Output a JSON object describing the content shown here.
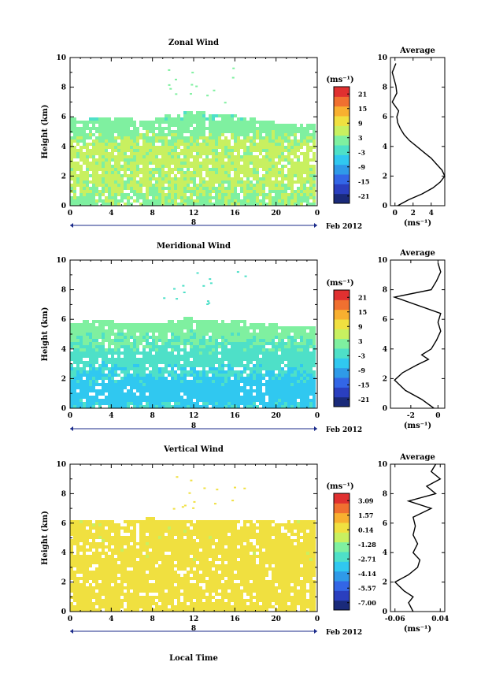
{
  "chart_data": [
    {
      "type": "heatmap",
      "title": "Zonal Wind",
      "xlabel": "",
      "ylabel": "Height (km)",
      "xticks": [
        "0",
        "4",
        "8",
        "12",
        "16",
        "20",
        "0"
      ],
      "yticks": [
        "0",
        "2",
        "4",
        "6",
        "8",
        "10"
      ],
      "xlim": [
        0,
        24
      ],
      "ylim": [
        0,
        10
      ],
      "date_marker": "8",
      "date_label": "Feb 2012",
      "colorbar": {
        "unit": "(ms⁻¹)",
        "ticks": [
          "21",
          "15",
          "9",
          "3",
          "-3",
          "-9",
          "-15",
          "-21"
        ],
        "range": [
          -24,
          24
        ]
      },
      "field": {
        "data_top_km": [
          6.0,
          6.0,
          6.0,
          6.0,
          6.1,
          6.0,
          5.9,
          5.8,
          6.0,
          6.2,
          6.3,
          6.4,
          6.4,
          6.3,
          6.3,
          6.2,
          6.0,
          6.0,
          5.9,
          5.8,
          5.6,
          5.6,
          5.6,
          5.6
        ],
        "value_by_height": [
          [
            0,
            3
          ],
          [
            1,
            4
          ],
          [
            2,
            5
          ],
          [
            3,
            5
          ],
          [
            4,
            5
          ],
          [
            5,
            3
          ],
          [
            6,
            1
          ],
          [
            8,
            0
          ],
          [
            10,
            1
          ]
        ]
      },
      "average_profile": {
        "title": "Average",
        "xlabel": "(ms⁻¹)",
        "xticks": [
          "0",
          "2",
          "4"
        ],
        "xlim": [
          -0.5,
          5.5
        ],
        "ylim": [
          0,
          10
        ],
        "yticks": [
          "0",
          "2",
          "4",
          "6",
          "8",
          "10"
        ],
        "points": [
          [
            0.3,
            0
          ],
          [
            1.5,
            0.4
          ],
          [
            3.0,
            0.8
          ],
          [
            4.2,
            1.2
          ],
          [
            5.0,
            1.6
          ],
          [
            5.5,
            2.0
          ],
          [
            5.2,
            2.4
          ],
          [
            4.6,
            2.8
          ],
          [
            4.0,
            3.2
          ],
          [
            3.2,
            3.6
          ],
          [
            2.4,
            4.0
          ],
          [
            1.6,
            4.4
          ],
          [
            1.0,
            4.8
          ],
          [
            0.6,
            5.2
          ],
          [
            0.3,
            5.6
          ],
          [
            0.2,
            6.0
          ],
          [
            0.4,
            6.4
          ],
          [
            -0.3,
            7.0
          ],
          [
            0.2,
            7.6
          ],
          [
            0.1,
            8.1
          ],
          [
            -0.3,
            9.0
          ],
          [
            0.1,
            9.6
          ]
        ]
      }
    },
    {
      "type": "heatmap",
      "title": "Meridional Wind",
      "xlabel": "",
      "ylabel": "Height (km)",
      "xticks": [
        "0",
        "4",
        "8",
        "12",
        "16",
        "20",
        "0"
      ],
      "yticks": [
        "0",
        "2",
        "4",
        "6",
        "8",
        "10"
      ],
      "xlim": [
        0,
        24
      ],
      "ylim": [
        0,
        10
      ],
      "date_marker": "8",
      "date_label": "Feb 2012",
      "colorbar": {
        "unit": "(ms⁻¹)",
        "ticks": [
          "21",
          "15",
          "9",
          "3",
          "-3",
          "-9",
          "-15",
          "-21"
        ],
        "range": [
          -24,
          24
        ]
      },
      "field": {
        "data_top_km": [
          5.9,
          6.0,
          6.0,
          6.0,
          5.9,
          5.9,
          5.8,
          5.8,
          5.9,
          6.0,
          6.1,
          6.2,
          6.1,
          6.1,
          6.0,
          6.0,
          6.0,
          5.9,
          5.9,
          5.8,
          5.7,
          5.6,
          5.6,
          5.6
        ],
        "value_by_height": [
          [
            0,
            -4
          ],
          [
            1,
            -6
          ],
          [
            2,
            -5
          ],
          [
            3,
            -3
          ],
          [
            4,
            -1
          ],
          [
            5,
            1
          ],
          [
            6,
            2
          ],
          [
            8,
            -1
          ],
          [
            10,
            0
          ]
        ]
      },
      "average_profile": {
        "title": "Average",
        "xlabel": "(ms⁻¹)",
        "xticks": [
          "-2",
          "0"
        ],
        "xlim": [
          -3.5,
          0.5
        ],
        "ylim": [
          0,
          10
        ],
        "yticks": [
          "0",
          "2",
          "4",
          "6",
          "8",
          "10"
        ],
        "points": [
          [
            -0.3,
            0
          ],
          [
            -1.2,
            0.6
          ],
          [
            -2.4,
            1.2
          ],
          [
            -3.2,
            1.9
          ],
          [
            -2.6,
            2.4
          ],
          [
            -1.6,
            2.9
          ],
          [
            -0.7,
            3.3
          ],
          [
            -1.2,
            3.6
          ],
          [
            -0.5,
            4.0
          ],
          [
            -0.1,
            4.6
          ],
          [
            0.2,
            5.2
          ],
          [
            0.0,
            5.8
          ],
          [
            0.2,
            6.4
          ],
          [
            -3.2,
            7.5
          ],
          [
            -0.5,
            8.0
          ],
          [
            -0.1,
            8.6
          ],
          [
            0.2,
            9.2
          ],
          [
            0.0,
            9.8
          ]
        ]
      }
    },
    {
      "type": "heatmap",
      "title": "Vertical Wind",
      "xlabel": "Local Time",
      "ylabel": "Height (km)",
      "xticks": [
        "0",
        "4",
        "8",
        "12",
        "16",
        "20",
        "0"
      ],
      "yticks": [
        "0",
        "2",
        "4",
        "6",
        "8",
        "10"
      ],
      "xlim": [
        0,
        24
      ],
      "ylim": [
        0,
        10
      ],
      "date_marker": "8",
      "date_label": "Feb 2012",
      "colorbar": {
        "unit": "(ms⁻¹)",
        "ticks": [
          "3.09",
          "1.57",
          "0.14",
          "-1.28",
          "-2.71",
          "-4.14",
          "-5.57",
          "-7.00"
        ],
        "range": [
          -7.71,
          3.8
        ]
      },
      "field": {
        "data_top_km": [
          6.3,
          6.4,
          6.3,
          6.3,
          6.2,
          6.3,
          6.4,
          6.5,
          6.4,
          6.4,
          6.3,
          6.4,
          6.3,
          6.4,
          6.4,
          6.3,
          6.4,
          6.3,
          6.3,
          6.3,
          6.2,
          6.3,
          6.3,
          6.3
        ],
        "value_by_height": [
          [
            0,
            0.4
          ],
          [
            3,
            0.3
          ],
          [
            6,
            0.3
          ],
          [
            10,
            0.3
          ]
        ]
      },
      "average_profile": {
        "title": "Average",
        "xlabel": "(ms⁻¹)",
        "xticks": [
          "-0.06",
          "0.04"
        ],
        "xlim": [
          -0.07,
          0.05
        ],
        "ylim": [
          0,
          10
        ],
        "yticks": [
          "0",
          "2",
          "4",
          "6",
          "8",
          "10"
        ],
        "points": [
          [
            -0.02,
            0
          ],
          [
            -0.03,
            0.6
          ],
          [
            -0.02,
            1.0
          ],
          [
            -0.04,
            1.4
          ],
          [
            -0.06,
            2.0
          ],
          [
            -0.03,
            2.5
          ],
          [
            -0.01,
            3.0
          ],
          [
            -0.005,
            3.5
          ],
          [
            -0.02,
            4.0
          ],
          [
            -0.01,
            4.6
          ],
          [
            -0.02,
            5.2
          ],
          [
            -0.015,
            5.8
          ],
          [
            -0.02,
            6.4
          ],
          [
            0.02,
            7.0
          ],
          [
            -0.03,
            7.5
          ],
          [
            0.03,
            8.0
          ],
          [
            0.01,
            8.5
          ],
          [
            0.04,
            9.0
          ],
          [
            0.02,
            9.5
          ],
          [
            0.03,
            10.0
          ]
        ]
      }
    }
  ]
}
